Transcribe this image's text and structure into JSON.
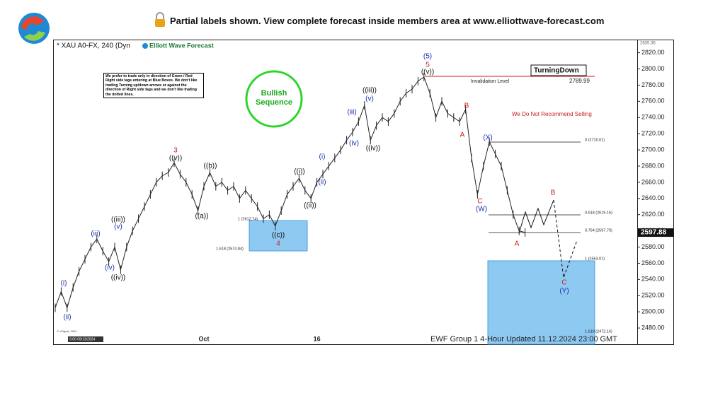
{
  "banner": "Partial labels shown. View complete forecast inside members area at www.elliottwave-forecast.com",
  "chart_data": {
    "type": "line",
    "symbol": "* XAU A0-FX, 240 (Dyn",
    "brand": "Elliott Wave Forecast",
    "disclaimer": "We prefer to trade only in direction of Green / Red Right side tags entering at Blue Boxes. We don't like trading Turning up/down arrows or against the direction of Right side tags and we don't like trading the dotted lines.",
    "sequence": [
      "Bullish",
      "Sequence"
    ],
    "turning": "TurningDown",
    "invalidation_label": "Invalidation Level",
    "invalidation_value": "2789.99",
    "warning": "We Do Not Recommend Selling",
    "footer": "EWF Group 1 4-Hour Updated 11.12.2024 23:00 GMT",
    "copyright": "© eSignal, 2024",
    "start_date": "9:00 09/13/2024",
    "last_price": 2597.88,
    "color": "#222222",
    "categories": [
      null,
      null,
      null,
      null,
      null,
      null,
      null,
      null,
      null,
      null,
      null,
      null,
      null,
      null,
      null,
      null,
      null,
      null,
      null,
      null,
      null,
      null,
      null,
      null,
      null,
      "Oct",
      null,
      null,
      null,
      null,
      null,
      null,
      null,
      null,
      null,
      null,
      null,
      null,
      null,
      null,
      null,
      null,
      null,
      null,
      "16",
      null,
      null,
      null,
      null,
      null,
      null,
      null,
      null,
      null,
      null,
      null,
      null,
      null,
      null,
      null,
      null,
      null,
      null,
      null,
      null,
      null,
      null,
      null,
      null,
      null,
      null,
      null,
      null,
      null,
      null,
      null,
      null,
      null,
      null,
      null
    ],
    "values": [
      2505,
      2525,
      2505,
      2530,
      2550,
      2565,
      2580,
      2590,
      2575,
      2562,
      2580,
      2552,
      2580,
      2600,
      2615,
      2630,
      2645,
      2660,
      2668,
      2672,
      2684,
      2670,
      2660,
      2645,
      2625,
      2655,
      2672,
      2655,
      2660,
      2650,
      2655,
      2640,
      2650,
      2640,
      2630,
      2615,
      2620,
      2606,
      2625,
      2645,
      2655,
      2665,
      2650,
      2640,
      2660,
      2670,
      2680,
      2690,
      2700,
      2712,
      2722,
      2735,
      2755,
      2712,
      2730,
      2740,
      2735,
      2745,
      2760,
      2770,
      2775,
      2785,
      2790,
      2770,
      2740,
      2760,
      2745,
      2740,
      2735,
      2750,
      2690,
      2645,
      2680,
      2710,
      2695,
      2680,
      2650,
      2620,
      2600,
      2598
    ],
    "ylim": [
      2460,
      2835.36
    ],
    "yticks": [
      {
        "value": 2480,
        "label": "2480.00"
      },
      {
        "value": 2500,
        "label": "2500.00"
      },
      {
        "value": 2520,
        "label": "2520.00"
      },
      {
        "value": 2540,
        "label": "2540.00"
      },
      {
        "value": 2560,
        "label": "2560.00"
      },
      {
        "value": 2580,
        "label": "2580.00"
      },
      {
        "value": 2600,
        "label": "2600.00"
      },
      {
        "value": 2620,
        "label": "2620.00"
      },
      {
        "value": 2640,
        "label": "2640.00"
      },
      {
        "value": 2660,
        "label": "2660.00"
      },
      {
        "value": 2680,
        "label": "2680.00"
      },
      {
        "value": 2700,
        "label": "2700.00"
      },
      {
        "value": 2720,
        "label": "2720.00"
      },
      {
        "value": 2740,
        "label": "2740.00"
      },
      {
        "value": 2760,
        "label": "2760.00"
      },
      {
        "value": 2780,
        "label": "2780.00"
      },
      {
        "value": 2800,
        "label": "2800.00"
      },
      {
        "value": 2820,
        "label": "2820.00"
      }
    ],
    "fib_labels": [
      "1 (2612.74)",
      "1.618 (2574.84)",
      "0 (2710.01)",
      "0.618 (2619.16)",
      "0.764 (2597.70)",
      "1 (2563.01)",
      "1.618 (2472.16)"
    ],
    "annotations": [
      {
        "text": "(i)",
        "color": "#1a2fb0"
      },
      {
        "text": "(ii)",
        "color": "#1a2fb0"
      },
      {
        "text": "(iii)",
        "color": "#1a2fb0"
      },
      {
        "text": "(iv)",
        "color": "#1a2fb0"
      },
      {
        "text": "(v)",
        "color": "#1a2fb0"
      },
      {
        "text": "((iii))",
        "color": "#111111"
      },
      {
        "text": "((iv))",
        "color": "#111111"
      },
      {
        "text": "3",
        "color": "#c81e1e"
      },
      {
        "text": "((v))",
        "color": "#111111"
      },
      {
        "text": "((b))",
        "color": "#111111"
      },
      {
        "text": "((a))",
        "color": "#111111"
      },
      {
        "text": "((c))",
        "color": "#111111"
      },
      {
        "text": "4",
        "color": "#c81e1e"
      },
      {
        "text": "((i))",
        "color": "#111111"
      },
      {
        "text": "(i)",
        "color": "#1a2fb0"
      },
      {
        "text": "(ii)",
        "color": "#1a2fb0"
      },
      {
        "text": "((ii))",
        "color": "#111111"
      },
      {
        "text": "(iii)",
        "color": "#1a2fb0"
      },
      {
        "text": "(iv)",
        "color": "#1a2fb0"
      },
      {
        "text": "((iii))",
        "color": "#111111"
      },
      {
        "text": "(v)",
        "color": "#1a2fb0"
      },
      {
        "text": "((iv))",
        "color": "#111111"
      },
      {
        "text": "(5)",
        "color": "#1a2fb0"
      },
      {
        "text": "5",
        "color": "#c81e1e"
      },
      {
        "text": "((v))",
        "color": "#111111"
      },
      {
        "text": "B",
        "color": "#c81e1e"
      },
      {
        "text": "A",
        "color": "#c81e1e"
      },
      {
        "text": "(X)",
        "color": "#1a2fb0"
      },
      {
        "text": "C",
        "color": "#c81e1e"
      },
      {
        "text": "(W)",
        "color": "#1a2fb0"
      },
      {
        "text": "B",
        "color": "#c81e1e"
      },
      {
        "text": "A",
        "color": "#c81e1e"
      },
      {
        "text": "C",
        "color": "#c81e1e"
      },
      {
        "text": "(Y)",
        "color": "#1a2fb0"
      }
    ]
  }
}
